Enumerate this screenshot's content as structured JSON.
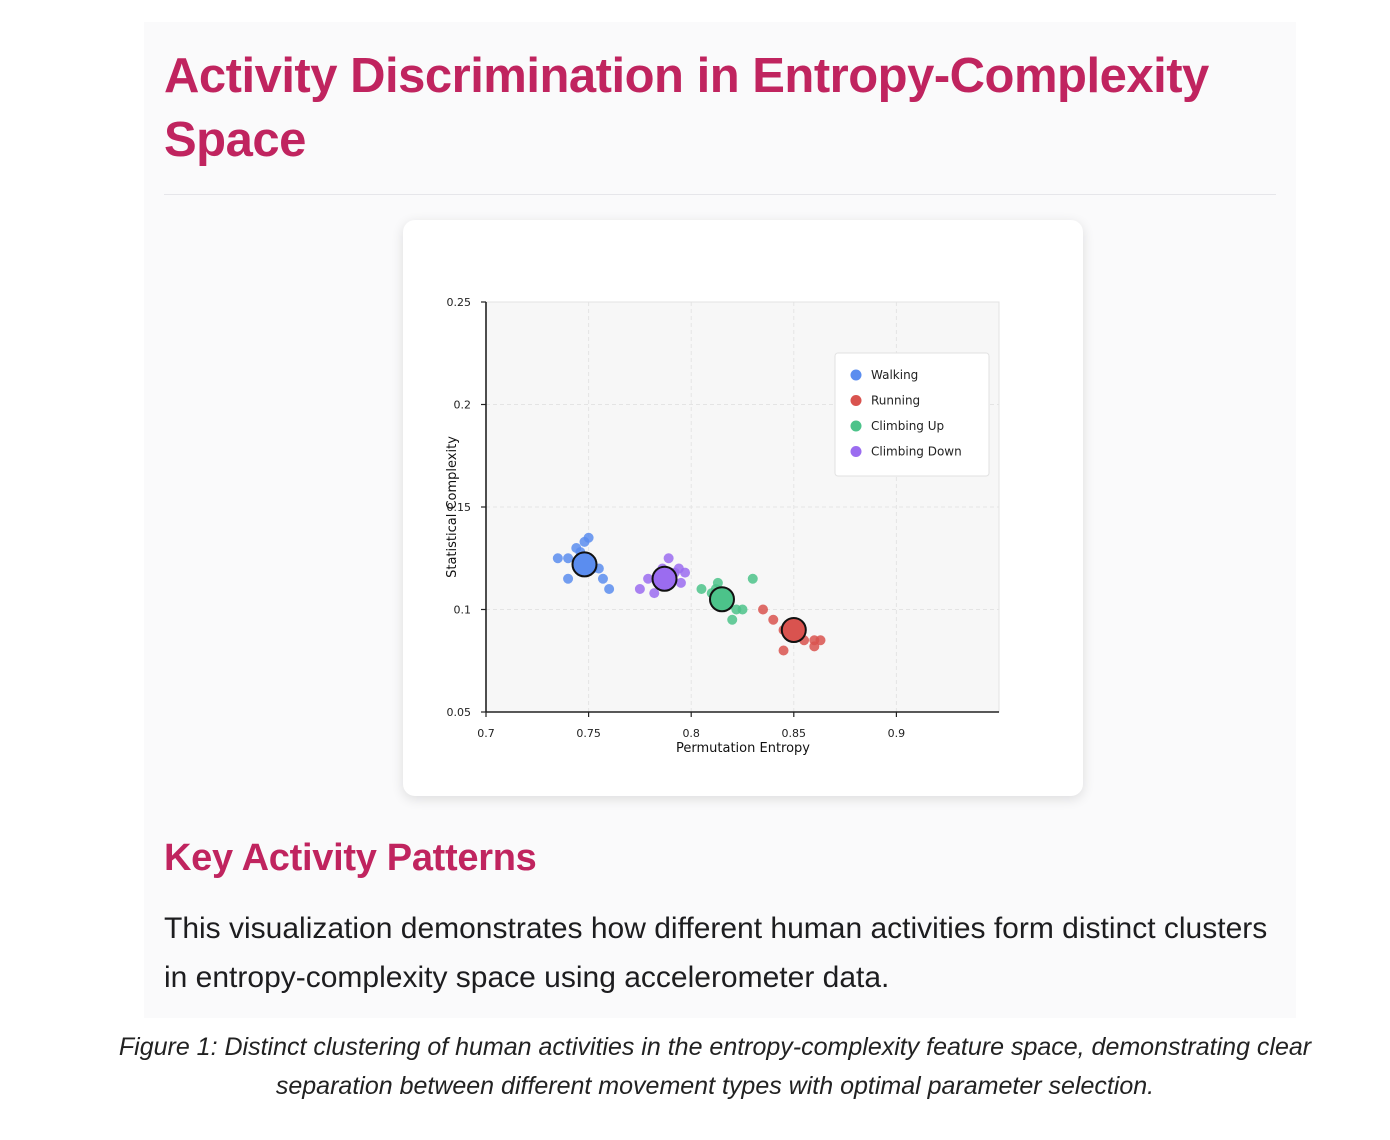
{
  "page": {
    "title": "Activity Discrimination in Entropy-Complexity Space",
    "section_title": "Key Activity Patterns",
    "body_text": "This visualization demonstrates how different human activities form distinct clusters in entropy-complexity space using accelerometer data.",
    "caption": "Figure 1: Distinct clustering of human activities in the entropy-complexity feature space, demonstrating clear separation between different movement types with optimal parameter selection."
  },
  "colors": {
    "title": "#c0245f",
    "Walking": "#5b8def",
    "Running": "#d9534f",
    "Climbing Up": "#4cc38a",
    "Climbing Down": "#9b6cf0"
  },
  "chart_data": {
    "type": "scatter",
    "title": "",
    "xlabel": "Permutation Entropy",
    "ylabel": "Statistical Complexity",
    "xlim": [
      0.7,
      0.95
    ],
    "ylim": [
      0.05,
      0.25
    ],
    "x_ticks": [
      "0.7",
      "0.75",
      "0.8",
      "0.85",
      "0.9"
    ],
    "y_ticks": [
      "0.05",
      "0.1",
      "0.15",
      "0.2",
      "0.25"
    ],
    "grid": true,
    "legend_position": "top-right",
    "series": [
      {
        "name": "Walking",
        "points": [
          [
            0.735,
            0.125
          ],
          [
            0.74,
            0.125
          ],
          [
            0.744,
            0.13
          ],
          [
            0.748,
            0.133
          ],
          [
            0.75,
            0.135
          ],
          [
            0.752,
            0.12
          ],
          [
            0.755,
            0.12
          ],
          [
            0.757,
            0.115
          ],
          [
            0.76,
            0.11
          ],
          [
            0.74,
            0.115
          ],
          [
            0.746,
            0.128
          ]
        ],
        "centroid": [
          0.748,
          0.122
        ]
      },
      {
        "name": "Running",
        "points": [
          [
            0.835,
            0.1
          ],
          [
            0.84,
            0.095
          ],
          [
            0.845,
            0.09
          ],
          [
            0.845,
            0.08
          ],
          [
            0.855,
            0.085
          ],
          [
            0.86,
            0.085
          ],
          [
            0.863,
            0.085
          ],
          [
            0.86,
            0.082
          ]
        ],
        "centroid": [
          0.85,
          0.09
        ]
      },
      {
        "name": "Climbing Up",
        "points": [
          [
            0.805,
            0.11
          ],
          [
            0.81,
            0.108
          ],
          [
            0.812,
            0.11
          ],
          [
            0.813,
            0.113
          ],
          [
            0.818,
            0.102
          ],
          [
            0.82,
            0.095
          ],
          [
            0.822,
            0.1
          ],
          [
            0.825,
            0.1
          ],
          [
            0.83,
            0.115
          ]
        ],
        "centroid": [
          0.815,
          0.105
        ]
      },
      {
        "name": "Climbing Down",
        "points": [
          [
            0.775,
            0.11
          ],
          [
            0.779,
            0.115
          ],
          [
            0.782,
            0.108
          ],
          [
            0.784,
            0.113
          ],
          [
            0.786,
            0.12
          ],
          [
            0.789,
            0.125
          ],
          [
            0.792,
            0.118
          ],
          [
            0.794,
            0.12
          ],
          [
            0.797,
            0.118
          ],
          [
            0.795,
            0.113
          ]
        ],
        "centroid": [
          0.787,
          0.115
        ]
      }
    ]
  }
}
